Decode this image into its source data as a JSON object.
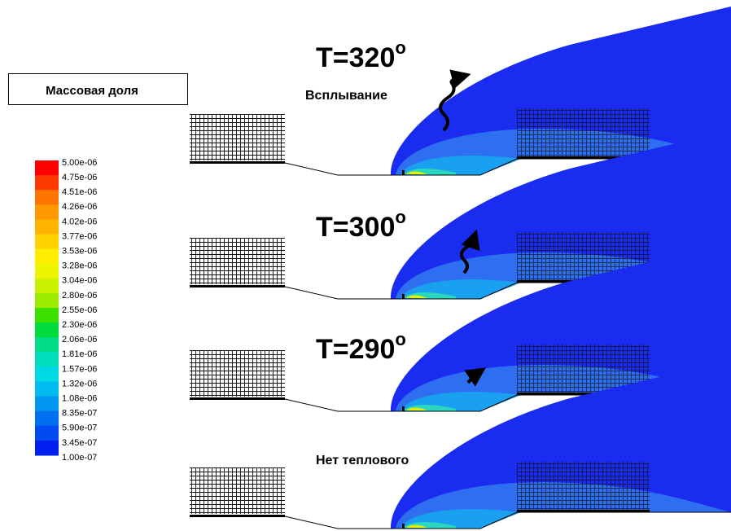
{
  "legend": {
    "title": "Массовая доля",
    "labels": [
      "5.00e-06",
      "4.75e-06",
      "4.51e-06",
      "4.26e-06",
      "4.02e-06",
      "3.77e-06",
      "3.53e-06",
      "3.28e-06",
      "3.04e-06",
      "2.80e-06",
      "2.55e-06",
      "2.30e-06",
      "2.06e-06",
      "1.81e-06",
      "1.57e-06",
      "1.32e-06",
      "1.08e-06",
      "8.35e-07",
      "5.90e-07",
      "3.45e-07",
      "1.00e-07"
    ],
    "colors": [
      "#ff0000",
      "#ff3a00",
      "#ff7400",
      "#ff9800",
      "#ffb400",
      "#ffd200",
      "#ffee00",
      "#eef400",
      "#c8f000",
      "#9aeb00",
      "#3ce000",
      "#00dc3c",
      "#00dc8a",
      "#00dcbc",
      "#00d8e4",
      "#00bcf0",
      "#0096f0",
      "#0070f0",
      "#004cf0",
      "#0020f0"
    ]
  },
  "panels": [
    {
      "label": "T=320",
      "sup": "o",
      "caption": "Всплывание"
    },
    {
      "label": "T=300",
      "sup": "o"
    },
    {
      "label": "T=290",
      "sup": "o"
    },
    {
      "caption": "Нет теплового"
    }
  ]
}
